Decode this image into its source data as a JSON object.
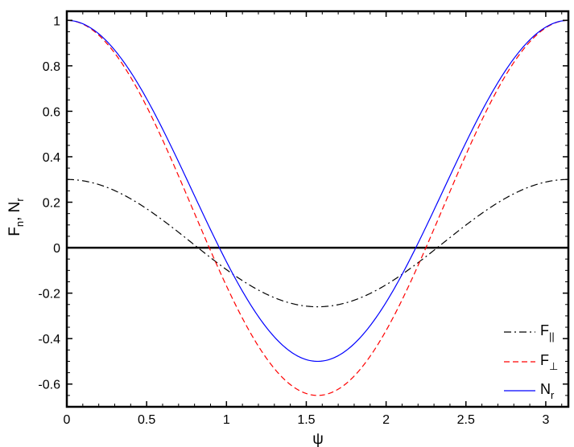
{
  "chart_data": {
    "type": "line",
    "xlabel": "ψ",
    "ylabel": {
      "base": "F",
      "sub1": "n",
      "sep": ", N",
      "sub2": "r"
    },
    "xlim": [
      0,
      3.1416
    ],
    "ylim": [
      -0.7,
      1.04
    ],
    "xticks": [
      0,
      0.5,
      1,
      1.5,
      2,
      2.5,
      3
    ],
    "xtick_labels": [
      "0",
      "0.5",
      "1",
      "1.5",
      "2",
      "2.5",
      "3"
    ],
    "yticks": [
      -0.6,
      -0.4,
      -0.2,
      0,
      0.2,
      0.4,
      0.6,
      0.8,
      1
    ],
    "ytick_labels": [
      "-0.6",
      "-0.4",
      "-0.2",
      "0",
      "0.2",
      "0.4",
      "0.6",
      "0.8",
      "1"
    ],
    "grid": false,
    "legend_position": "bottom-right",
    "zero_line": {
      "y": 0,
      "color": "#000000"
    },
    "series": [
      {
        "name": "F||",
        "label_base": "F",
        "label_sub": "||",
        "color": "#000000",
        "dash": "dashdot",
        "formula": "0.02 + 0.28*cos(2*psi)",
        "key_points": [
          [
            0,
            0.3
          ],
          [
            0.785,
            0.02
          ],
          [
            1.5708,
            -0.26
          ],
          [
            2.356,
            0.02
          ],
          [
            3.1416,
            0.3
          ]
        ]
      },
      {
        "name": "F⊥",
        "label_base": "F",
        "label_sub": "⊥",
        "color": "#ff0000",
        "dash": "dashed",
        "formula": "0.175 + 0.825*cos(2*psi)",
        "key_points": [
          [
            0,
            1.0
          ],
          [
            0.785,
            0.175
          ],
          [
            1.5708,
            -0.65
          ],
          [
            2.356,
            0.175
          ],
          [
            3.1416,
            1.0
          ]
        ]
      },
      {
        "name": "Nr",
        "label_base": "N",
        "label_sub": "r",
        "color": "#0000ff",
        "dash": "solid",
        "formula": "0.25 + 0.75*cos(2*psi)",
        "key_points": [
          [
            0,
            1.0
          ],
          [
            0.785,
            0.25
          ],
          [
            1.5708,
            -0.5
          ],
          [
            2.356,
            0.25
          ],
          [
            3.1416,
            1.0
          ]
        ]
      }
    ]
  }
}
